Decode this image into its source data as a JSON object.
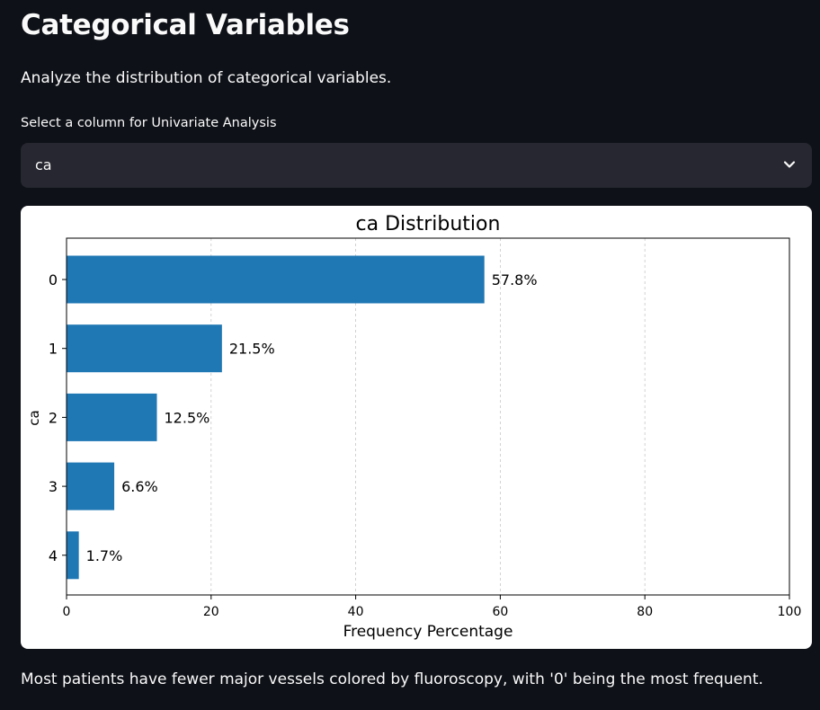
{
  "header": {
    "title": "Categorical Variables",
    "subtitle": "Analyze the distribution of categorical variables."
  },
  "select": {
    "label": "Select a column for Univariate Analysis",
    "value": "ca",
    "icon": "chevron-down-icon"
  },
  "chart_data": {
    "type": "bar",
    "orientation": "horizontal",
    "title": "ca Distribution",
    "xlabel": "Frequency Percentage",
    "ylabel": "ca",
    "categories": [
      "0",
      "1",
      "2",
      "3",
      "4"
    ],
    "values": [
      57.8,
      21.5,
      12.5,
      6.6,
      1.7
    ],
    "data_labels": [
      "57.8%",
      "21.5%",
      "12.5%",
      "6.6%",
      "1.7%"
    ],
    "xlim": [
      0,
      100
    ],
    "xticks": [
      0,
      20,
      40,
      60,
      80,
      100
    ],
    "grid": "vertical dashed",
    "bar_color": "#1f77b4"
  },
  "caption": "Most patients have fewer major vessels colored by fluoroscopy, with '0' being the most frequent."
}
